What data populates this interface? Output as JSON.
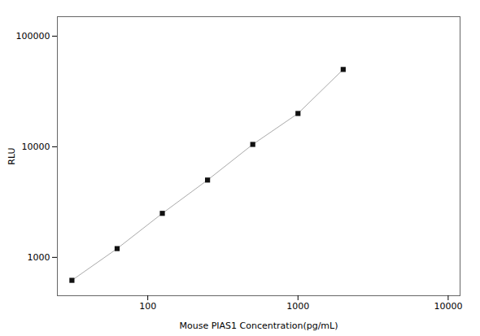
{
  "chart_data": {
    "type": "line",
    "xlabel": "Mouse PIAS1 Concentration(pg/mL)",
    "ylabel": "RLU",
    "x": [
      31.25,
      62.5,
      125,
      250,
      500,
      1000,
      2000
    ],
    "series": [
      {
        "type": "line",
        "color": "#aaaaaa",
        "values": [
          620,
          1200,
          2500,
          5000,
          10500,
          20000,
          50000
        ]
      },
      {
        "type": "scatter",
        "color": "#111111",
        "marker": "square",
        "values": [
          620,
          1200,
          2500,
          5000,
          10500,
          20000,
          50000
        ]
      }
    ],
    "xlim": [
      25,
      12000
    ],
    "ylim": [
      450,
      150000
    ],
    "xticks": [
      100,
      1000,
      10000
    ],
    "yticks": [
      1000,
      10000,
      100000
    ],
    "log": true,
    "grid": false
  }
}
